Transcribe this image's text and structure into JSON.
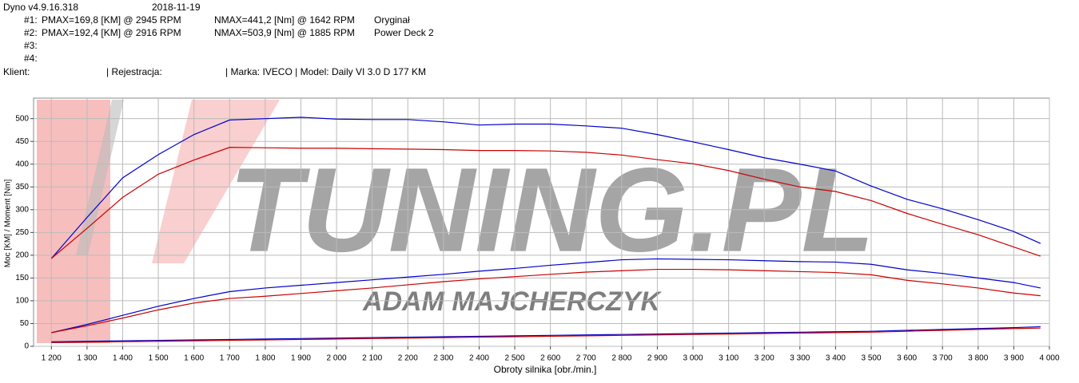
{
  "header": {
    "app": "Dyno v4.9.16.318",
    "date": "2018-11-19",
    "runs": [
      {
        "id": "#1:",
        "pmax": "PMAX=169,8 [KM] @ 2945 RPM",
        "nmax": "NMAX=441,2 [Nm] @ 1642 RPM",
        "name": "Oryginał"
      },
      {
        "id": "#2:",
        "pmax": "PMAX=192,4 [KM] @ 2916 RPM",
        "nmax": "NMAX=503,9 [Nm] @ 1885 RPM",
        "name": "Power Deck 2"
      },
      {
        "id": "#3:"
      },
      {
        "id": "#4:"
      }
    ],
    "client": "Klient:",
    "registration": "| Rejestracja:",
    "vehicle": "| Marka: IVECO | Model: Daily VI 3.0 D 177 KM"
  },
  "chart_data": {
    "type": "line",
    "ylabel": "Moc [KM] / Moment [Nm]",
    "xlabel": "Obroty silnika [obr./min.]",
    "watermark": {
      "logo": "TUNING.PL",
      "author": "ADAM MAJCHERCZYK"
    },
    "grid": true,
    "xlim": [
      1150,
      4000
    ],
    "ylim": [
      0,
      545
    ],
    "xticks": [
      {
        "value": 1200,
        "label": "1 200"
      },
      {
        "value": 1300,
        "label": "1 300"
      },
      {
        "value": 1400,
        "label": "1 400"
      },
      {
        "value": 1500,
        "label": "1 500"
      },
      {
        "value": 1600,
        "label": "1 600"
      },
      {
        "value": 1700,
        "label": "1 700"
      },
      {
        "value": 1800,
        "label": "1 800"
      },
      {
        "value": 1900,
        "label": "1 900"
      },
      {
        "value": 2000,
        "label": "2 000"
      },
      {
        "value": 2100,
        "label": "2 100"
      },
      {
        "value": 2200,
        "label": "2 200"
      },
      {
        "value": 2300,
        "label": "2 300"
      },
      {
        "value": 2400,
        "label": "2 400"
      },
      {
        "value": 2500,
        "label": "2 500"
      },
      {
        "value": 2600,
        "label": "2 600"
      },
      {
        "value": 2700,
        "label": "2 700"
      },
      {
        "value": 2800,
        "label": "2 800"
      },
      {
        "value": 2900,
        "label": "2 900"
      },
      {
        "value": 3000,
        "label": "3 000"
      },
      {
        "value": 3100,
        "label": "3 100"
      },
      {
        "value": 3200,
        "label": "3 200"
      },
      {
        "value": 3300,
        "label": "3 300"
      },
      {
        "value": 3400,
        "label": "3 400"
      },
      {
        "value": 3500,
        "label": "3 500"
      },
      {
        "value": 3600,
        "label": "3 600"
      },
      {
        "value": 3700,
        "label": "3 700"
      },
      {
        "value": 3800,
        "label": "3 800"
      },
      {
        "value": 3900,
        "label": "3 900"
      },
      {
        "value": 4000,
        "label": "4 000"
      }
    ],
    "yticks": [
      0,
      50,
      100,
      150,
      200,
      250,
      300,
      350,
      400,
      450,
      500
    ],
    "x": [
      1200,
      1300,
      1400,
      1500,
      1600,
      1700,
      1800,
      1900,
      2000,
      2100,
      2200,
      2300,
      2400,
      2500,
      2600,
      2700,
      2800,
      2900,
      3000,
      3100,
      3200,
      3300,
      3400,
      3500,
      3600,
      3700,
      3800,
      3900,
      3975
    ],
    "series": [
      {
        "color": "#0000cc",
        "values": [
          193,
          283,
          370,
          421,
          465,
          497,
          500,
          503,
          499,
          498,
          498,
          493,
          486,
          488,
          488,
          484,
          479,
          465,
          449,
          432,
          414,
          400,
          385,
          352,
          323,
          302,
          278,
          252,
          226
        ]
      },
      {
        "color": "#cc0000",
        "values": [
          193,
          259,
          327,
          378,
          409,
          437,
          436,
          435,
          435,
          434,
          433,
          432,
          430,
          430,
          429,
          426,
          420,
          410,
          401,
          386,
          367,
          350,
          340,
          320,
          292,
          268,
          245,
          218,
          198
        ]
      },
      {
        "color": "#0000cc",
        "values": [
          30,
          48,
          68,
          88,
          105,
          120,
          128,
          134,
          140,
          146,
          152,
          158,
          165,
          171,
          178,
          184,
          190,
          192,
          191,
          190,
          188,
          186,
          185,
          180,
          168,
          160,
          150,
          140,
          128
        ]
      },
      {
        "color": "#cc0000",
        "values": [
          30,
          45,
          62,
          80,
          95,
          105,
          110,
          116,
          122,
          128,
          135,
          142,
          148,
          153,
          158,
          163,
          166,
          169,
          169,
          168,
          166,
          164,
          162,
          157,
          145,
          137,
          128,
          117,
          111
        ]
      },
      {
        "color": "#0000cc",
        "values": [
          10,
          11,
          12,
          13,
          14,
          15,
          16,
          17,
          18,
          19,
          20,
          21,
          22,
          23,
          24,
          25,
          26,
          27,
          28,
          29,
          30,
          31,
          32,
          33,
          35,
          37,
          39,
          41,
          43
        ]
      },
      {
        "color": "#cc0000",
        "values": [
          8,
          9,
          10,
          11,
          12,
          13,
          14,
          15,
          16,
          17,
          18,
          19,
          20,
          21,
          22,
          23,
          24,
          25,
          26,
          27,
          28,
          29,
          30,
          31,
          33,
          35,
          37,
          39,
          40
        ]
      }
    ]
  }
}
